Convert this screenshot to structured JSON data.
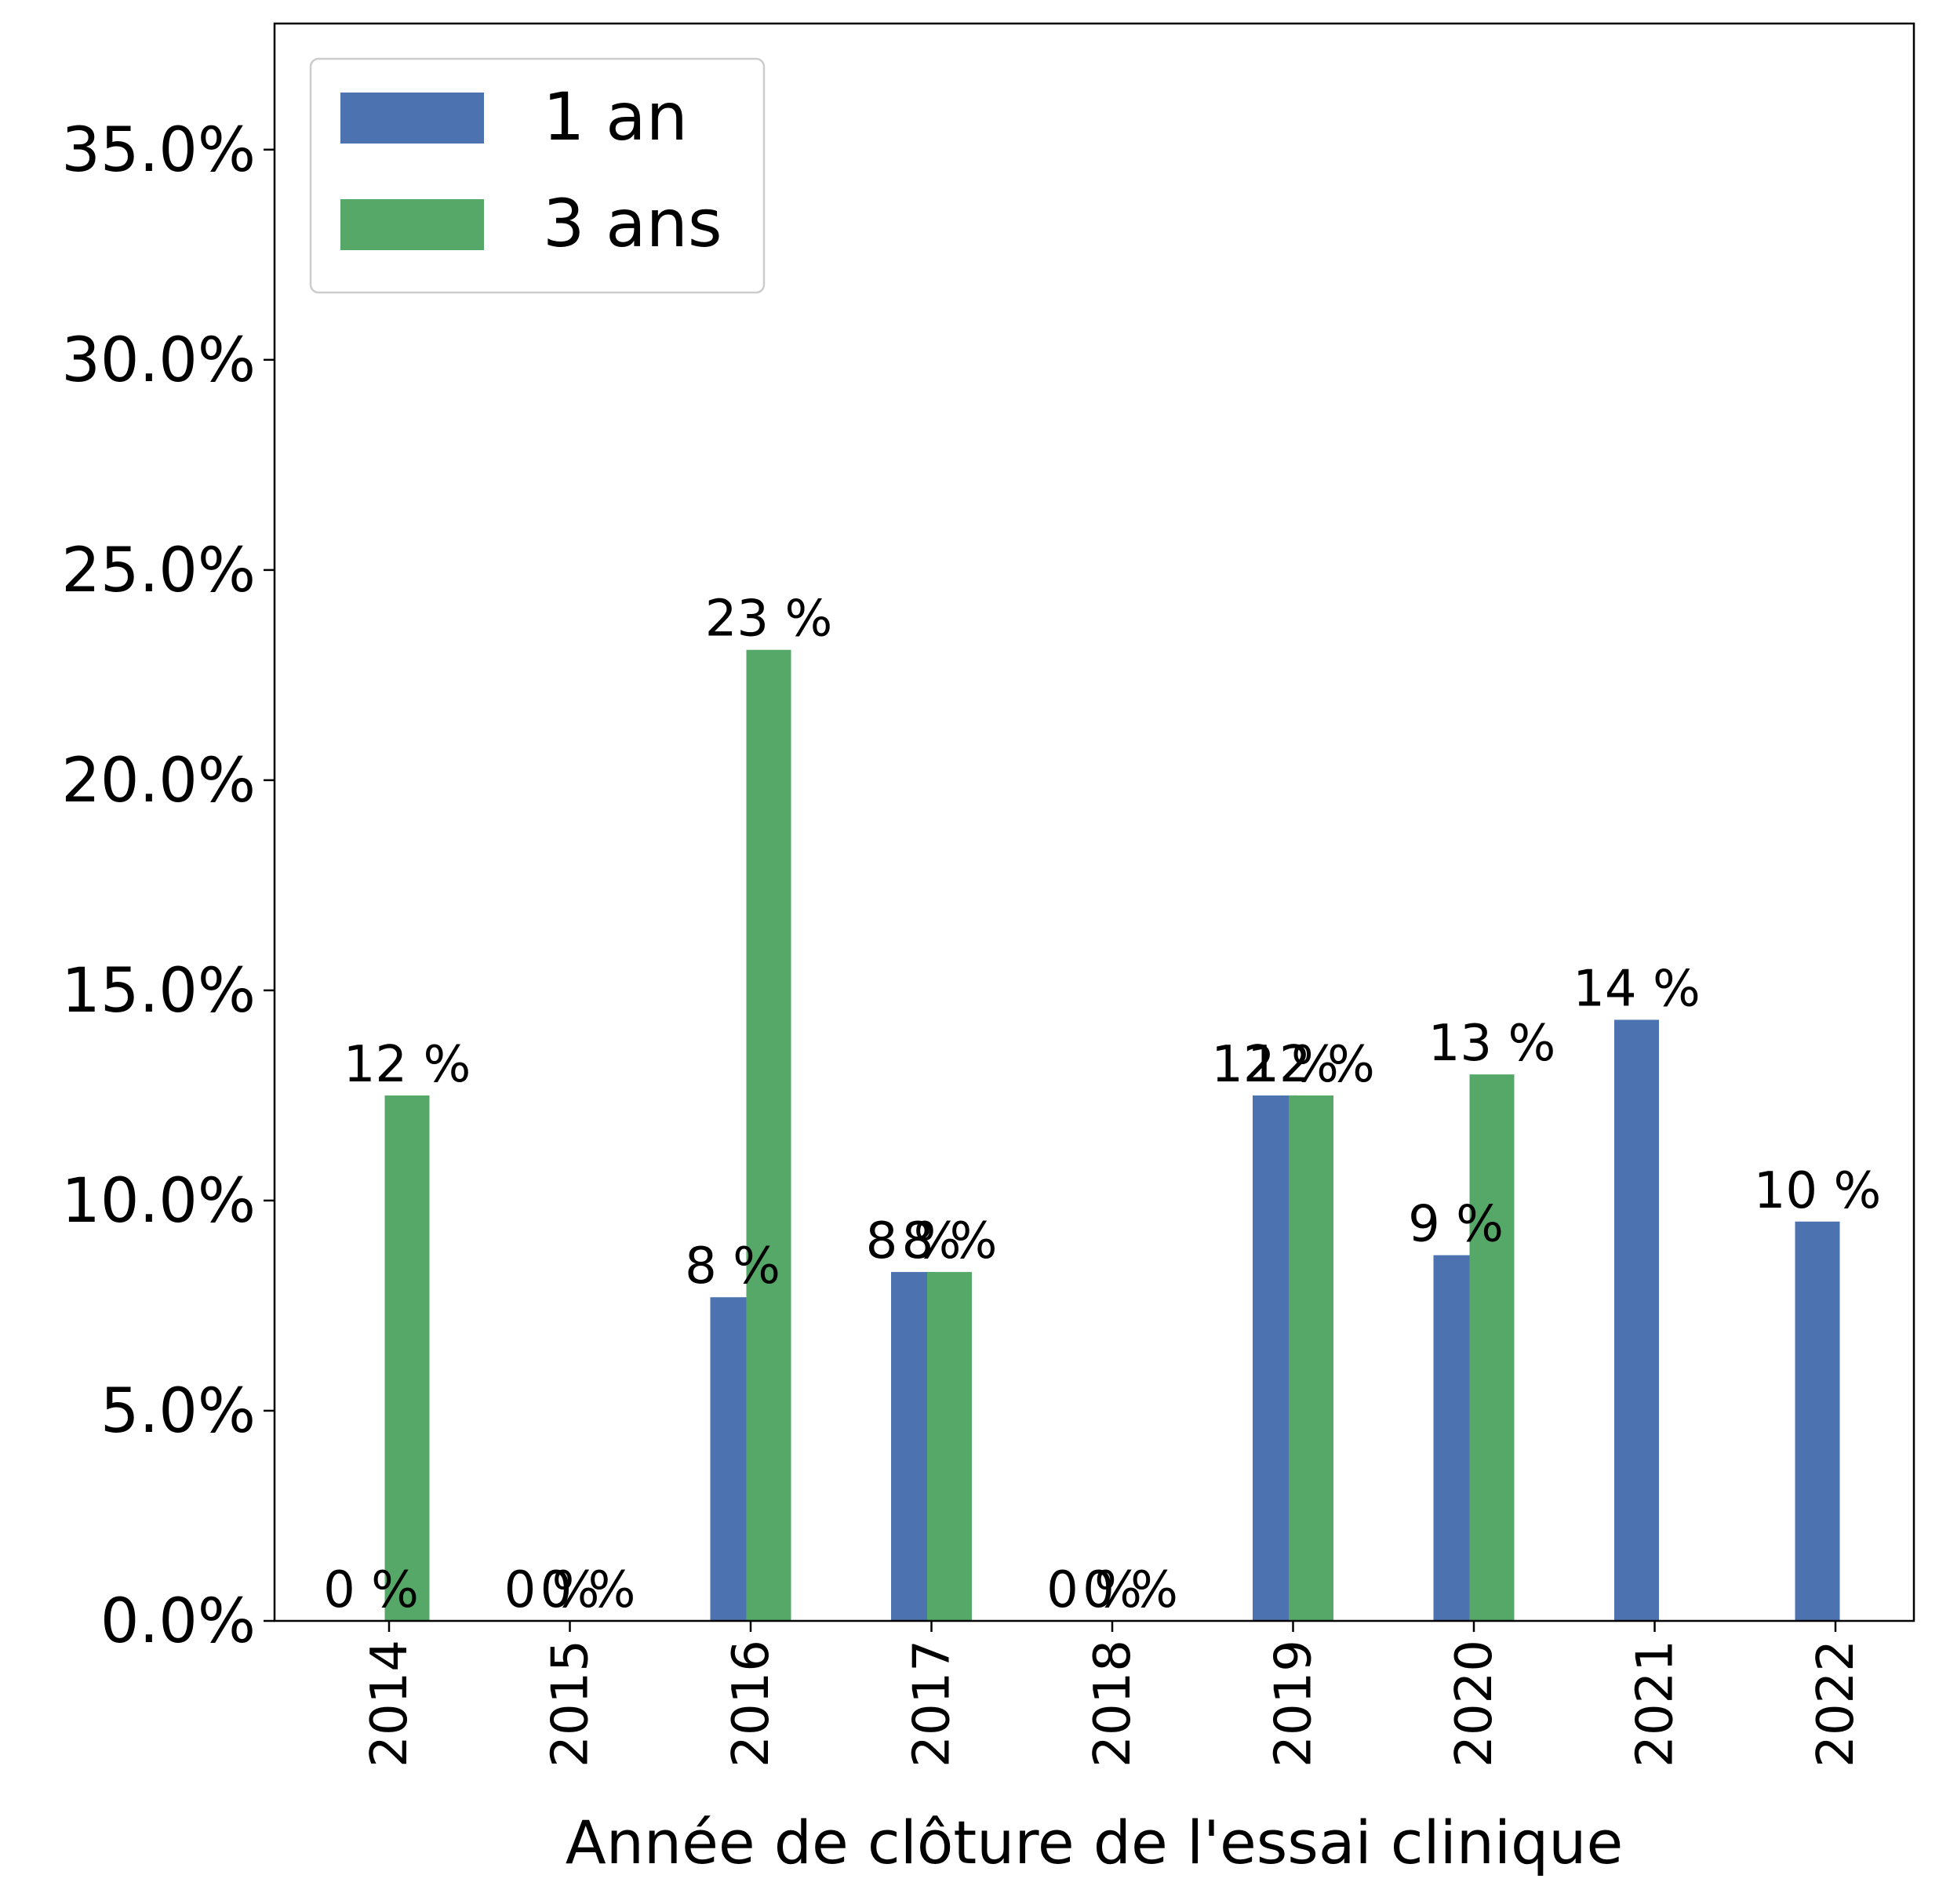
{
  "chart_data": {
    "type": "bar",
    "title": "",
    "xlabel": "Année de clôture de l'essai clinique",
    "ylabel": "",
    "categories": [
      "2014",
      "2015",
      "2016",
      "2017",
      "2018",
      "2019",
      "2020",
      "2021",
      "2022"
    ],
    "series": [
      {
        "name": "1 an",
        "color": "#4c72b0",
        "values": [
          0,
          0,
          7.7,
          8.3,
          0,
          12.5,
          8.7,
          14.3,
          9.5
        ],
        "labels": [
          "0 %",
          "0 %",
          "8 %",
          "8 %",
          "0 %",
          "12 %",
          "9 %",
          "14 %",
          "10 %"
        ]
      },
      {
        "name": "3 ans",
        "color": "#55a868",
        "values": [
          12.5,
          0,
          23.1,
          8.3,
          0,
          12.5,
          13.0,
          null,
          null
        ],
        "labels": [
          "12 %",
          "0 %",
          "23 %",
          "8 %",
          "0 %",
          "12 %",
          "13 %",
          null,
          null
        ]
      }
    ],
    "ylim": [
      0,
      38
    ],
    "yticks": [
      "0.0%",
      "5.0%",
      "10.0%",
      "15.0%",
      "20.0%",
      "25.0%",
      "30.0%",
      "35.0%"
    ],
    "ytick_values": [
      0,
      5,
      10,
      15,
      20,
      25,
      30,
      35
    ],
    "grid": false,
    "legend_position": "top-left"
  }
}
